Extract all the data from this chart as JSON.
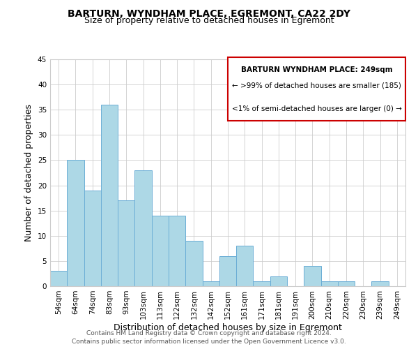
{
  "title": "BARTURN, WYNDHAM PLACE, EGREMONT, CA22 2DY",
  "subtitle": "Size of property relative to detached houses in Egremont",
  "xlabel": "Distribution of detached houses by size in Egremont",
  "ylabel": "Number of detached properties",
  "bin_labels": [
    "54sqm",
    "64sqm",
    "74sqm",
    "83sqm",
    "93sqm",
    "103sqm",
    "113sqm",
    "122sqm",
    "132sqm",
    "142sqm",
    "152sqm",
    "161sqm",
    "171sqm",
    "181sqm",
    "191sqm",
    "200sqm",
    "210sqm",
    "220sqm",
    "230sqm",
    "239sqm",
    "249sqm"
  ],
  "bar_heights": [
    3,
    25,
    19,
    36,
    17,
    23,
    14,
    14,
    9,
    1,
    6,
    8,
    1,
    2,
    0,
    4,
    1,
    1,
    0,
    1,
    0
  ],
  "bar_color": "#add8e6",
  "bar_edge_color": "#6baed6",
  "ylim": [
    0,
    45
  ],
  "yticks": [
    0,
    5,
    10,
    15,
    20,
    25,
    30,
    35,
    40,
    45
  ],
  "legend_title": "BARTURN WYNDHAM PLACE: 249sqm",
  "legend_line1": "← >99% of detached houses are smaller (185)",
  "legend_line2": "<1% of semi-detached houses are larger (0) →",
  "legend_box_color": "#ffffff",
  "legend_box_edge_color": "#cc0000",
  "footer1": "Contains HM Land Registry data © Crown copyright and database right 2024.",
  "footer2": "Contains public sector information licensed under the Open Government Licence v3.0.",
  "grid_color": "#cccccc",
  "background_color": "#ffffff",
  "title_fontsize": 10,
  "subtitle_fontsize": 9,
  "axis_label_fontsize": 9,
  "tick_fontsize": 7.5,
  "footer_fontsize": 6.5,
  "legend_fontsize": 7.5
}
